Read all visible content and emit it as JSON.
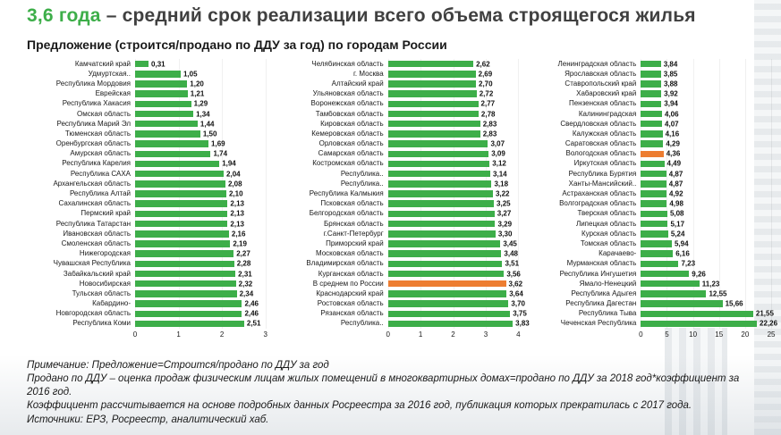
{
  "header": {
    "highlight": "3,6 года",
    "title_rest": " – средний срок реализации всего объема строящегося жилья",
    "subtitle": "Предложение (строится/продано по ДДУ за год) по городам России"
  },
  "colors": {
    "bar_green": "#3dae49",
    "bar_orange": "#ed7d31",
    "title_green": "#3dae49"
  },
  "chart_data": [
    {
      "type": "bar",
      "orientation": "horizontal",
      "name": "panel-left",
      "xlabel": "",
      "ylabel": "",
      "xmax": 3,
      "ticks": [
        "0",
        "1",
        "2",
        "3"
      ],
      "grid": true,
      "rows": [
        {
          "label": "Камчатский край",
          "v": "0,31"
        },
        {
          "label": "Удмуртская..",
          "v": "1,05"
        },
        {
          "label": "Республика Мордовия",
          "v": "1,20"
        },
        {
          "label": "Еврейская",
          "v": "1,21"
        },
        {
          "label": "Республика Хакасия",
          "v": "1,29"
        },
        {
          "label": "Омская область",
          "v": "1,34"
        },
        {
          "label": "Республика Марий Эл",
          "v": "1,44"
        },
        {
          "label": "Тюменская область",
          "v": "1,50"
        },
        {
          "label": "Оренбургская область",
          "v": "1,69"
        },
        {
          "label": "Амурская область",
          "v": "1,74"
        },
        {
          "label": "Республика Карелия",
          "v": "1,94"
        },
        {
          "label": "Республика САХА",
          "v": "2,04"
        },
        {
          "label": "Архангельская область",
          "v": "2,08"
        },
        {
          "label": "Республика Алтай",
          "v": "2,10"
        },
        {
          "label": "Сахалинская область",
          "v": "2,13"
        },
        {
          "label": "Пермский край",
          "v": "2,13"
        },
        {
          "label": "Республика Татарстан",
          "v": "2,13"
        },
        {
          "label": "Ивановская область",
          "v": "2,16"
        },
        {
          "label": "Смоленская область",
          "v": "2,19"
        },
        {
          "label": "Нижегородская",
          "v": "2,27"
        },
        {
          "label": "Чувашская Республика",
          "v": "2,28"
        },
        {
          "label": "Забайкальский край",
          "v": "2,31"
        },
        {
          "label": "Новосибирская",
          "v": "2,32"
        },
        {
          "label": "Тульская область",
          "v": "2,34"
        },
        {
          "label": "Кабардино-",
          "v": "2,46"
        },
        {
          "label": "Новгородская область",
          "v": "2,46"
        },
        {
          "label": "Республика Коми",
          "v": "2,51"
        }
      ]
    },
    {
      "type": "bar",
      "orientation": "horizontal",
      "name": "panel-middle",
      "xlabel": "",
      "ylabel": "",
      "xmax": 4,
      "ticks": [
        "0",
        "1",
        "2",
        "3",
        "4"
      ],
      "grid": true,
      "rows": [
        {
          "label": "Челябинская область",
          "v": "2,62"
        },
        {
          "label": "г. Москва",
          "v": "2,69"
        },
        {
          "label": "Алтайский край",
          "v": "2,70"
        },
        {
          "label": "Ульяновская область",
          "v": "2,72"
        },
        {
          "label": "Воронежская область",
          "v": "2,77"
        },
        {
          "label": "Тамбовская область",
          "v": "2,78"
        },
        {
          "label": "Кировская область",
          "v": "2,83"
        },
        {
          "label": "Кемеровская область",
          "v": "2,83"
        },
        {
          "label": "Орловская область",
          "v": "3,07"
        },
        {
          "label": "Самарская область",
          "v": "3,09"
        },
        {
          "label": "Костромская область",
          "v": "3,12"
        },
        {
          "label": "Республика..",
          "v": "3,14"
        },
        {
          "label": "Республика..",
          "v": "3,18"
        },
        {
          "label": "Республика Калмыкия",
          "v": "3,22"
        },
        {
          "label": "Псковская область",
          "v": "3,25"
        },
        {
          "label": "Белгородская область",
          "v": "3,27"
        },
        {
          "label": "Брянская область",
          "v": "3,29"
        },
        {
          "label": "г.Санкт-Петербург",
          "v": "3,30"
        },
        {
          "label": "Приморский край",
          "v": "3,45"
        },
        {
          "label": "Московская область",
          "v": "3,48"
        },
        {
          "label": "Владимирская область",
          "v": "3,51"
        },
        {
          "label": "Курганская область",
          "v": "3,56"
        },
        {
          "label": "В среднем по России",
          "v": "3,62",
          "hl": true
        },
        {
          "label": "Краснодарский край",
          "v": "3,64"
        },
        {
          "label": "Ростовская область",
          "v": "3,70"
        },
        {
          "label": "Рязанская область",
          "v": "3,75"
        },
        {
          "label": "Республика..",
          "v": "3,83"
        }
      ]
    },
    {
      "type": "bar",
      "orientation": "horizontal",
      "name": "panel-right",
      "xlabel": "",
      "ylabel": "",
      "xmax": 25,
      "ticks": [
        "0",
        "5",
        "10",
        "15",
        "20",
        "25"
      ],
      "grid": true,
      "rows": [
        {
          "label": "Ленинградская область",
          "v": "3,84"
        },
        {
          "label": "Ярославская область",
          "v": "3,85"
        },
        {
          "label": "Ставропольский край",
          "v": "3,88"
        },
        {
          "label": "Хабаровский край",
          "v": "3,92"
        },
        {
          "label": "Пензенская область",
          "v": "3,94"
        },
        {
          "label": "Калининградская",
          "v": "4,06"
        },
        {
          "label": "Свердловская область",
          "v": "4,07"
        },
        {
          "label": "Калужская область",
          "v": "4,16"
        },
        {
          "label": "Саратовская область",
          "v": "4,29"
        },
        {
          "label": "Вологодская область",
          "v": "4,36",
          "hl": true
        },
        {
          "label": "Иркутская область",
          "v": "4,49"
        },
        {
          "label": "Республика Бурятия",
          "v": "4,87"
        },
        {
          "label": "Ханты-Мансийский..",
          "v": "4,87"
        },
        {
          "label": "Астраханская область",
          "v": "4,92"
        },
        {
          "label": "Волгоградская область",
          "v": "4,98"
        },
        {
          "label": "Тверская область",
          "v": "5,08"
        },
        {
          "label": "Липецкая область",
          "v": "5,17"
        },
        {
          "label": "Курская область",
          "v": "5,24"
        },
        {
          "label": "Томская область",
          "v": "5,94"
        },
        {
          "label": "Карачаево-",
          "v": "6,16"
        },
        {
          "label": "Мурманская область",
          "v": "7,23"
        },
        {
          "label": "Республика Ингушетия",
          "v": "9,26"
        },
        {
          "label": "Ямало-Ненецкий",
          "v": "11,23"
        },
        {
          "label": "Республика Адыгея",
          "v": "12,55"
        },
        {
          "label": "Республика Дагестан",
          "v": "15,66"
        },
        {
          "label": "Республика Тыва",
          "v": "21,55"
        },
        {
          "label": "Чеченская Республика",
          "v": "22,26"
        }
      ]
    }
  ],
  "footnotes": [
    "Примечание: Предложение=Строится/продано по ДДУ за год",
    "Продано по ДДУ – оценка продаж физическим лицам жилых помещений в многоквартирных домах=продано по ДДУ за 2018 год*коэффициент за 2016 год.",
    "Коэффициент рассчитывается на основе подробных данных Росреестра за 2016 год, публикация которых прекратилась с 2017 года.",
    "Источники: ЕРЗ, Росреестр, аналитический хаб."
  ]
}
